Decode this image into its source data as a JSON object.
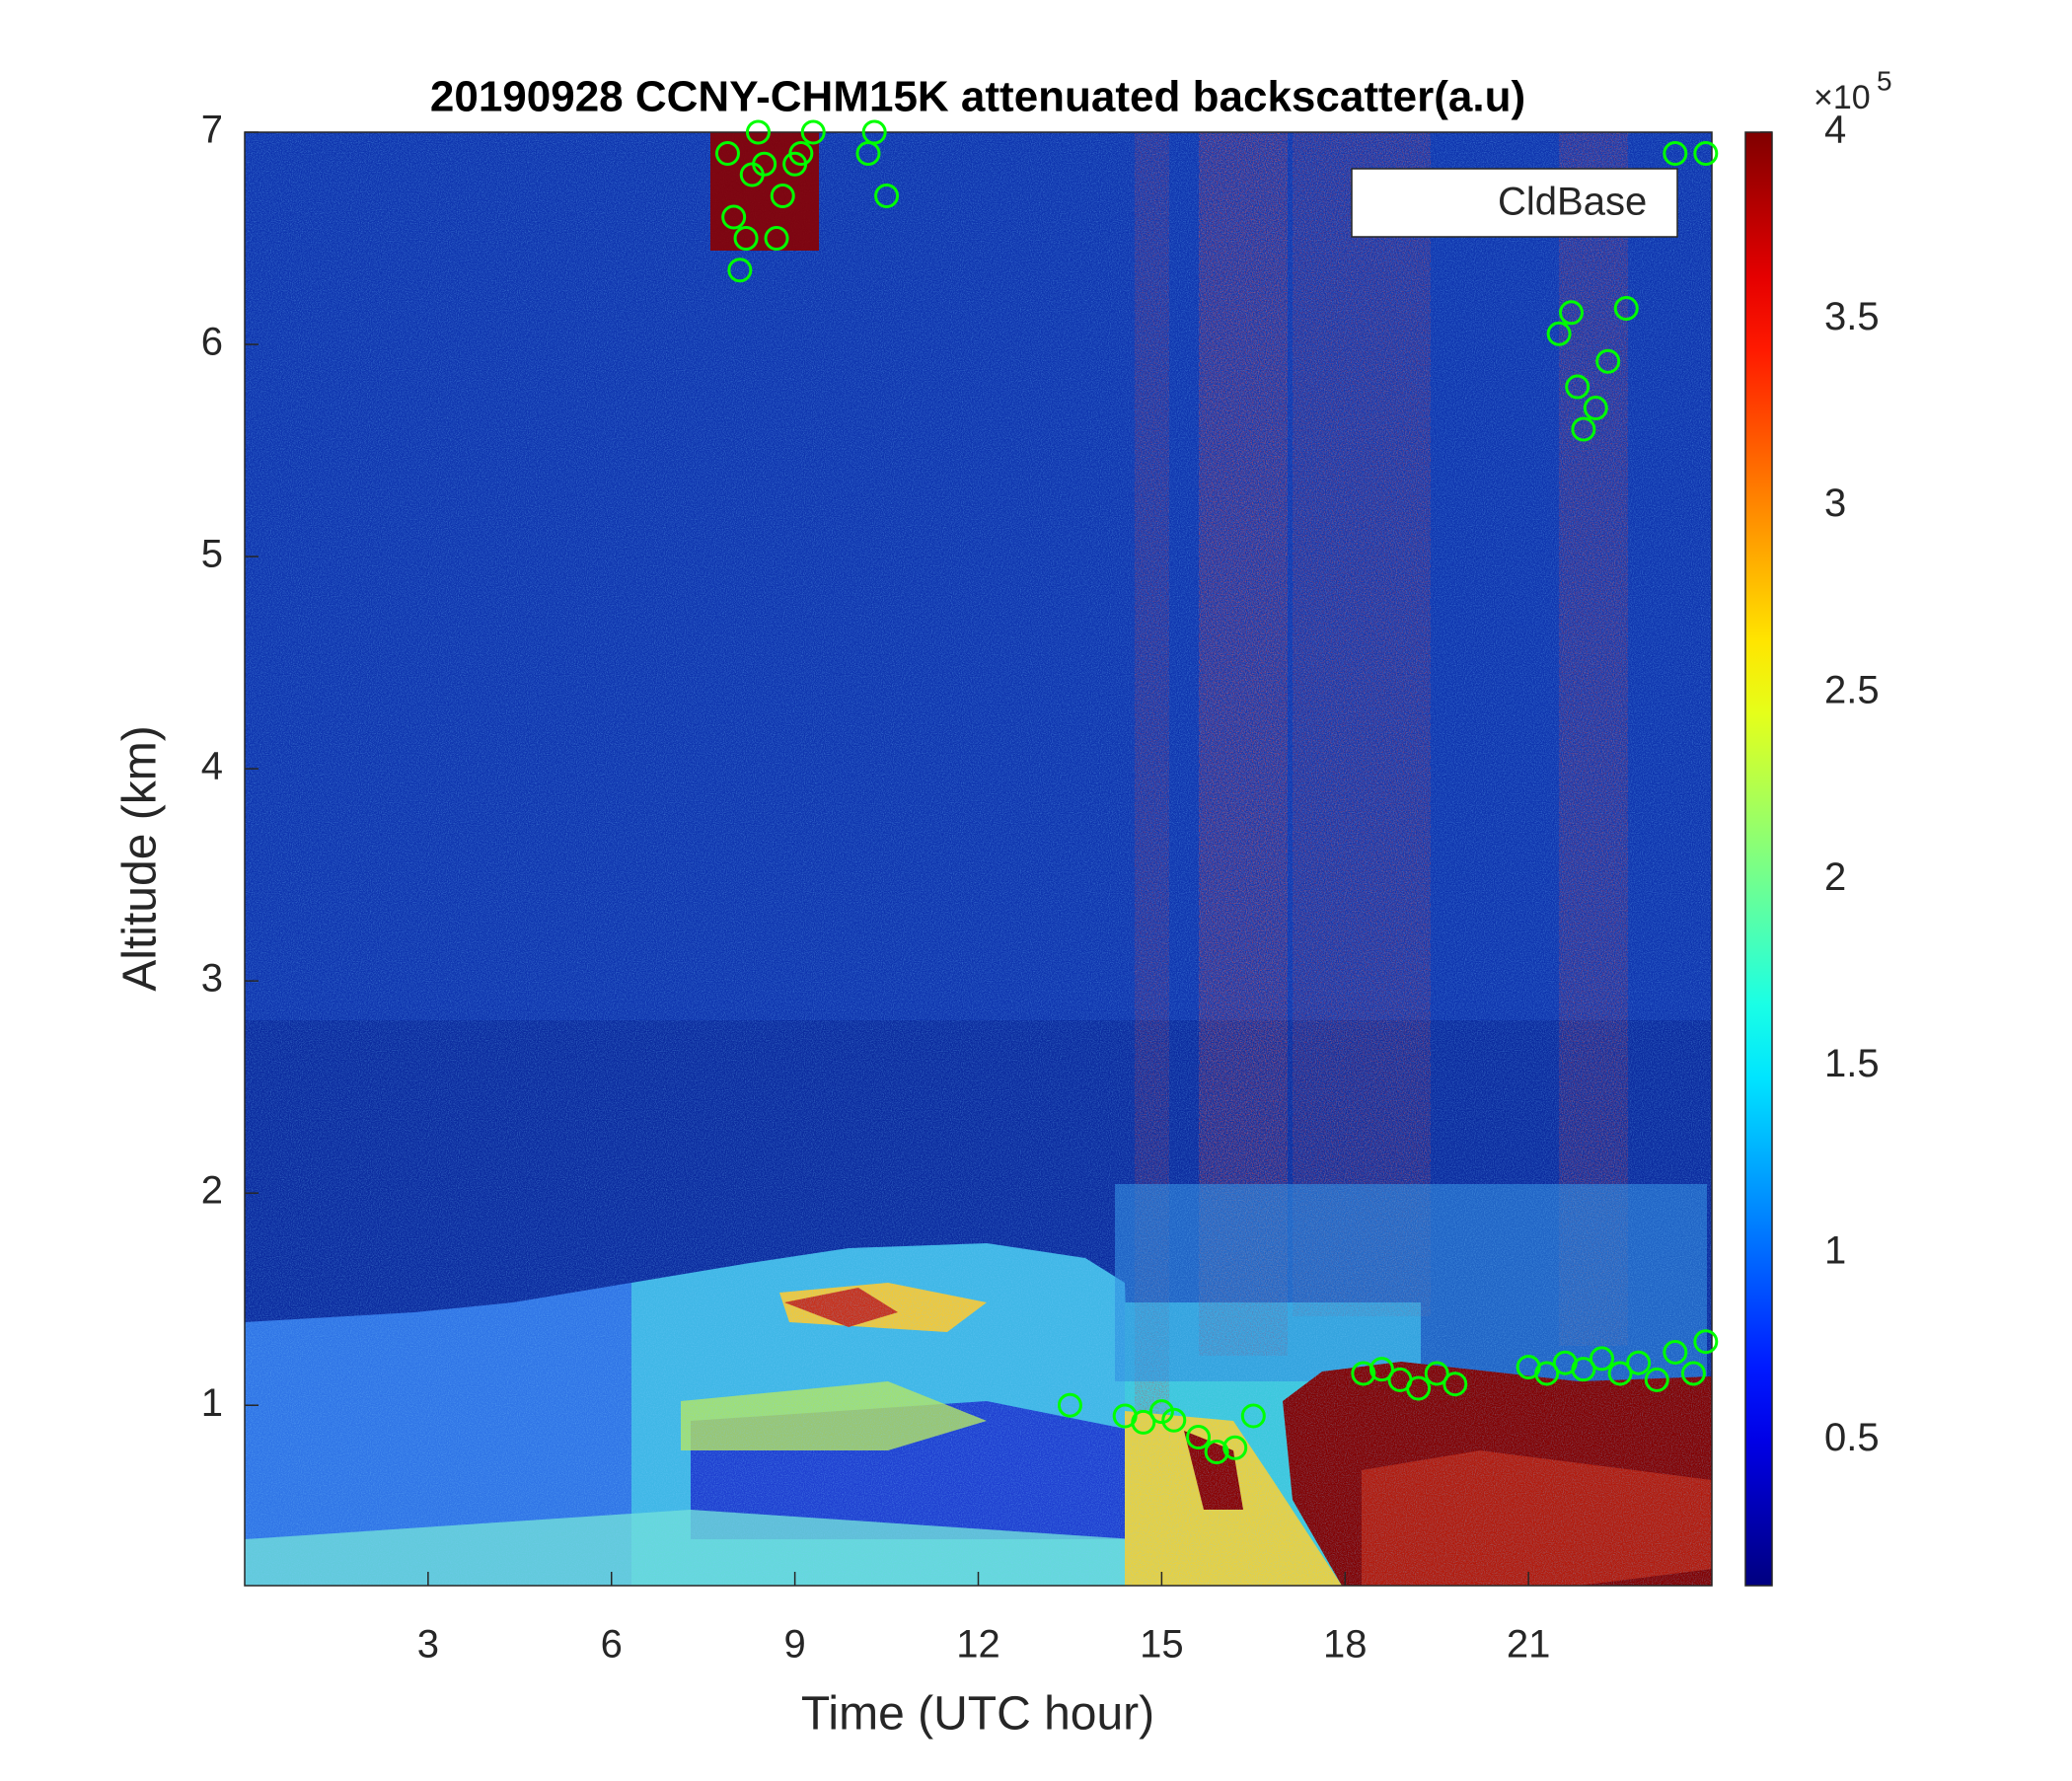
{
  "chart_data": {
    "type": "scatter",
    "title": "20190928 CCNY-CHM15K attenuated backscatter(a.u)",
    "x_label": "Time (UTC hour)",
    "y_label": "Altitude (km)",
    "xlim": [
      0,
      24
    ],
    "xticks": [
      3,
      6,
      9,
      12,
      15,
      18,
      21
    ],
    "ylim": [
      0.15,
      7
    ],
    "yticks": [
      1,
      2,
      3,
      4,
      5,
      6,
      7
    ],
    "x": [
      7.9,
      8.0,
      8.1,
      8.2,
      8.3,
      8.4,
      8.5,
      8.7,
      8.8,
      9.0,
      9.1,
      9.3,
      10.2,
      10.3,
      10.5,
      13.5,
      14.4,
      14.7,
      15.0,
      15.2,
      15.6,
      15.9,
      16.2,
      16.5,
      18.3,
      18.6,
      18.9,
      19.2,
      19.5,
      19.8,
      21.0,
      21.3,
      21.6,
      21.9,
      22.2,
      22.5,
      22.8,
      23.1,
      23.4,
      23.7,
      23.9,
      21.5,
      21.7,
      21.8,
      21.9,
      22.1,
      22.3,
      22.6,
      23.4,
      23.9
    ],
    "series": [
      {
        "name": "CldBase",
        "color": "#00ff00",
        "values": [
          6.9,
          6.6,
          6.35,
          6.5,
          6.8,
          7.0,
          6.85,
          6.5,
          6.7,
          6.85,
          6.9,
          7.0,
          6.9,
          7.0,
          6.7,
          1.0,
          0.95,
          0.92,
          0.97,
          0.93,
          0.85,
          0.78,
          0.8,
          0.95,
          1.15,
          1.17,
          1.12,
          1.08,
          1.15,
          1.1,
          1.18,
          1.15,
          1.2,
          1.17,
          1.22,
          1.15,
          1.2,
          1.12,
          1.25,
          1.15,
          1.3,
          6.05,
          6.15,
          5.8,
          5.6,
          5.7,
          5.92,
          6.17,
          6.9,
          6.9
        ]
      }
    ],
    "legend_position": "upper right",
    "colormap": "jet",
    "clim": [
      0.11,
      4
    ],
    "colorbar_ticks": [
      0.5,
      1,
      1.5,
      2,
      2.5,
      3,
      3.5,
      4
    ],
    "colorbar_multiplier": "×10",
    "colorbar_exponent": "5"
  }
}
